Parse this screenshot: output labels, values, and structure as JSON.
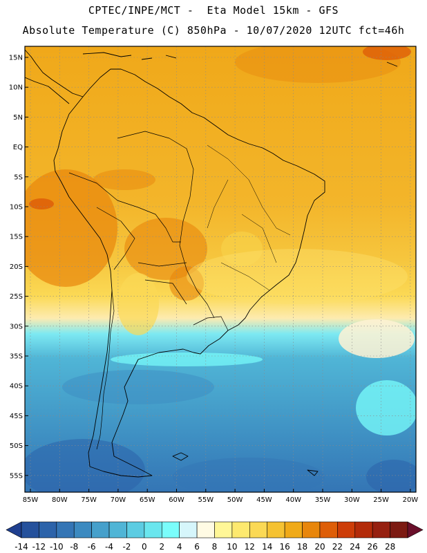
{
  "header": {
    "line1": "CPTEC/INPE/MCT -  Eta Model 15km - GFS",
    "line2": "Absolute Temperature (C) 850hPa - 10/07/2020 12UTC fct=46h"
  },
  "map": {
    "variable": "Absolute Temperature",
    "units": "C",
    "level": "850hPa",
    "run": "10/07/2020 12UTC",
    "forecast_hour": "46h",
    "lat_ticks": [
      "15N",
      "10N",
      "5N",
      "EQ",
      "5S",
      "10S",
      "15S",
      "20S",
      "25S",
      "30S",
      "35S",
      "40S",
      "45S",
      "50S",
      "55S"
    ],
    "lon_ticks": [
      "85W",
      "80W",
      "75W",
      "70W",
      "65W",
      "60W",
      "55W",
      "50W",
      "45W",
      "40W",
      "35W",
      "30W",
      "25W",
      "20W"
    ]
  },
  "colorbar": {
    "labels": [
      "-14",
      "-12",
      "-10",
      "-8",
      "-6",
      "-4",
      "-2",
      "0",
      "2",
      "4",
      "6",
      "8",
      "10",
      "12",
      "14",
      "16",
      "18",
      "20",
      "22",
      "24",
      "26",
      "28"
    ],
    "colors": [
      "#1f3f8f",
      "#25519c",
      "#2c63aa",
      "#3475b5",
      "#3c8ac0",
      "#46a0cb",
      "#50b5d6",
      "#5ccce2",
      "#6ae6ee",
      "#7afdfb",
      "#d6f6fb",
      "#fffbe4",
      "#fff797",
      "#fde96f",
      "#fbd955",
      "#f5c232",
      "#f0aa18",
      "#e8860b",
      "#de5e08",
      "#cd3d08",
      "#b32b09",
      "#962010",
      "#7c1a12",
      "#6a0f2a"
    ]
  }
}
